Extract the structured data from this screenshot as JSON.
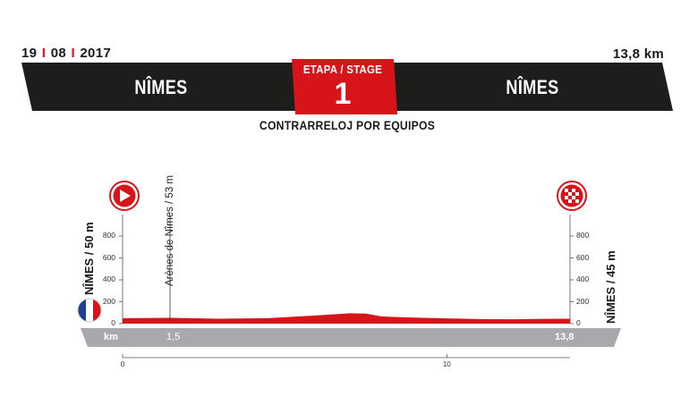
{
  "header": {
    "date_day": "19",
    "date_month": "08",
    "date_year": "2017",
    "distance": "13,8 km",
    "start_city": "NÎMES",
    "end_city": "NÎMES",
    "stage_label": "ETAPA / STAGE",
    "stage_number": "1",
    "stage_type": "CONTRARRELOJ POR EQUIPOS"
  },
  "colors": {
    "banner": "#1d1d1b",
    "accent_red": "#d8141b",
    "km_band": "#a7a9ac",
    "flag_blue": "#1f3f94"
  },
  "profile": {
    "start_altitude_label": "NÎMES / 50 m",
    "end_altitude_label": "NÎMES / 45 m",
    "poi_label": "Arènes de Nîmes / 53 m",
    "km_label": "km",
    "km_poi": "1,5",
    "km_end": "13,8",
    "start_icon": "play-triangle-icon",
    "finish_icon": "checkered-flag-icon",
    "flag_icon": "france-flag-icon"
  },
  "chart_data": {
    "type": "area",
    "x_unit": "km",
    "y_unit": "m",
    "xlim": [
      0,
      13.8
    ],
    "ylim": [
      0,
      900
    ],
    "y_ticks": [
      0,
      200,
      400,
      600,
      800
    ],
    "y_tick_labels": [
      "0",
      "200",
      "400",
      "600",
      "800"
    ],
    "x_ticks": [
      0,
      10
    ],
    "x_tick_labels": [
      "0",
      "10"
    ],
    "x": [
      0,
      1.5,
      3,
      4.5,
      6,
      7,
      7.5,
      8,
      9,
      10,
      11,
      12,
      13,
      13.8
    ],
    "y": [
      50,
      53,
      45,
      50,
      75,
      95,
      92,
      65,
      55,
      48,
      42,
      40,
      44,
      45
    ],
    "fill": "#d8141b"
  }
}
